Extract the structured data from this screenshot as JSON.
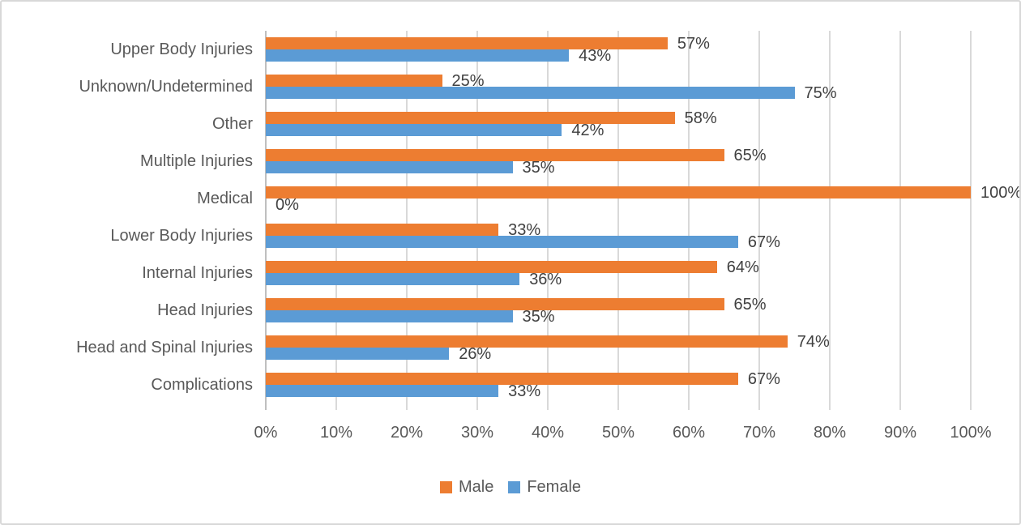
{
  "chart_data": {
    "type": "bar",
    "orientation": "horizontal",
    "title": "",
    "categories": [
      "Upper Body Injuries",
      "Unknown/Undetermined",
      "Other",
      "Multiple Injuries",
      "Medical",
      "Lower Body Injuries",
      "Internal Injuries",
      "Head Injuries",
      "Head and Spinal Injuries",
      "Complications"
    ],
    "series": [
      {
        "name": "Male",
        "color": "#ED7D31",
        "values": [
          57,
          25,
          58,
          65,
          100,
          33,
          64,
          65,
          74,
          67
        ]
      },
      {
        "name": "Female",
        "color": "#5B9BD5",
        "values": [
          43,
          75,
          42,
          35,
          0,
          67,
          36,
          35,
          26,
          33
        ]
      }
    ],
    "value_suffix": "%",
    "data_labels": true,
    "axis": {
      "min": 0,
      "max": 100,
      "step": 10,
      "tick_labels": [
        "0%",
        "10%",
        "20%",
        "30%",
        "40%",
        "50%",
        "60%",
        "70%",
        "80%",
        "90%",
        "100%"
      ]
    },
    "grid": true,
    "legend_position": "bottom"
  },
  "style": {
    "gridline_color": "#D9D9D9",
    "axis_line_color": "#BFBFBF",
    "tick_text_color": "#595959",
    "category_text_color": "#595959",
    "data_label_color": "#404040",
    "legend_text_color": "#595959",
    "background": "#FFFFFF",
    "border_color": "#D8D8D8"
  }
}
